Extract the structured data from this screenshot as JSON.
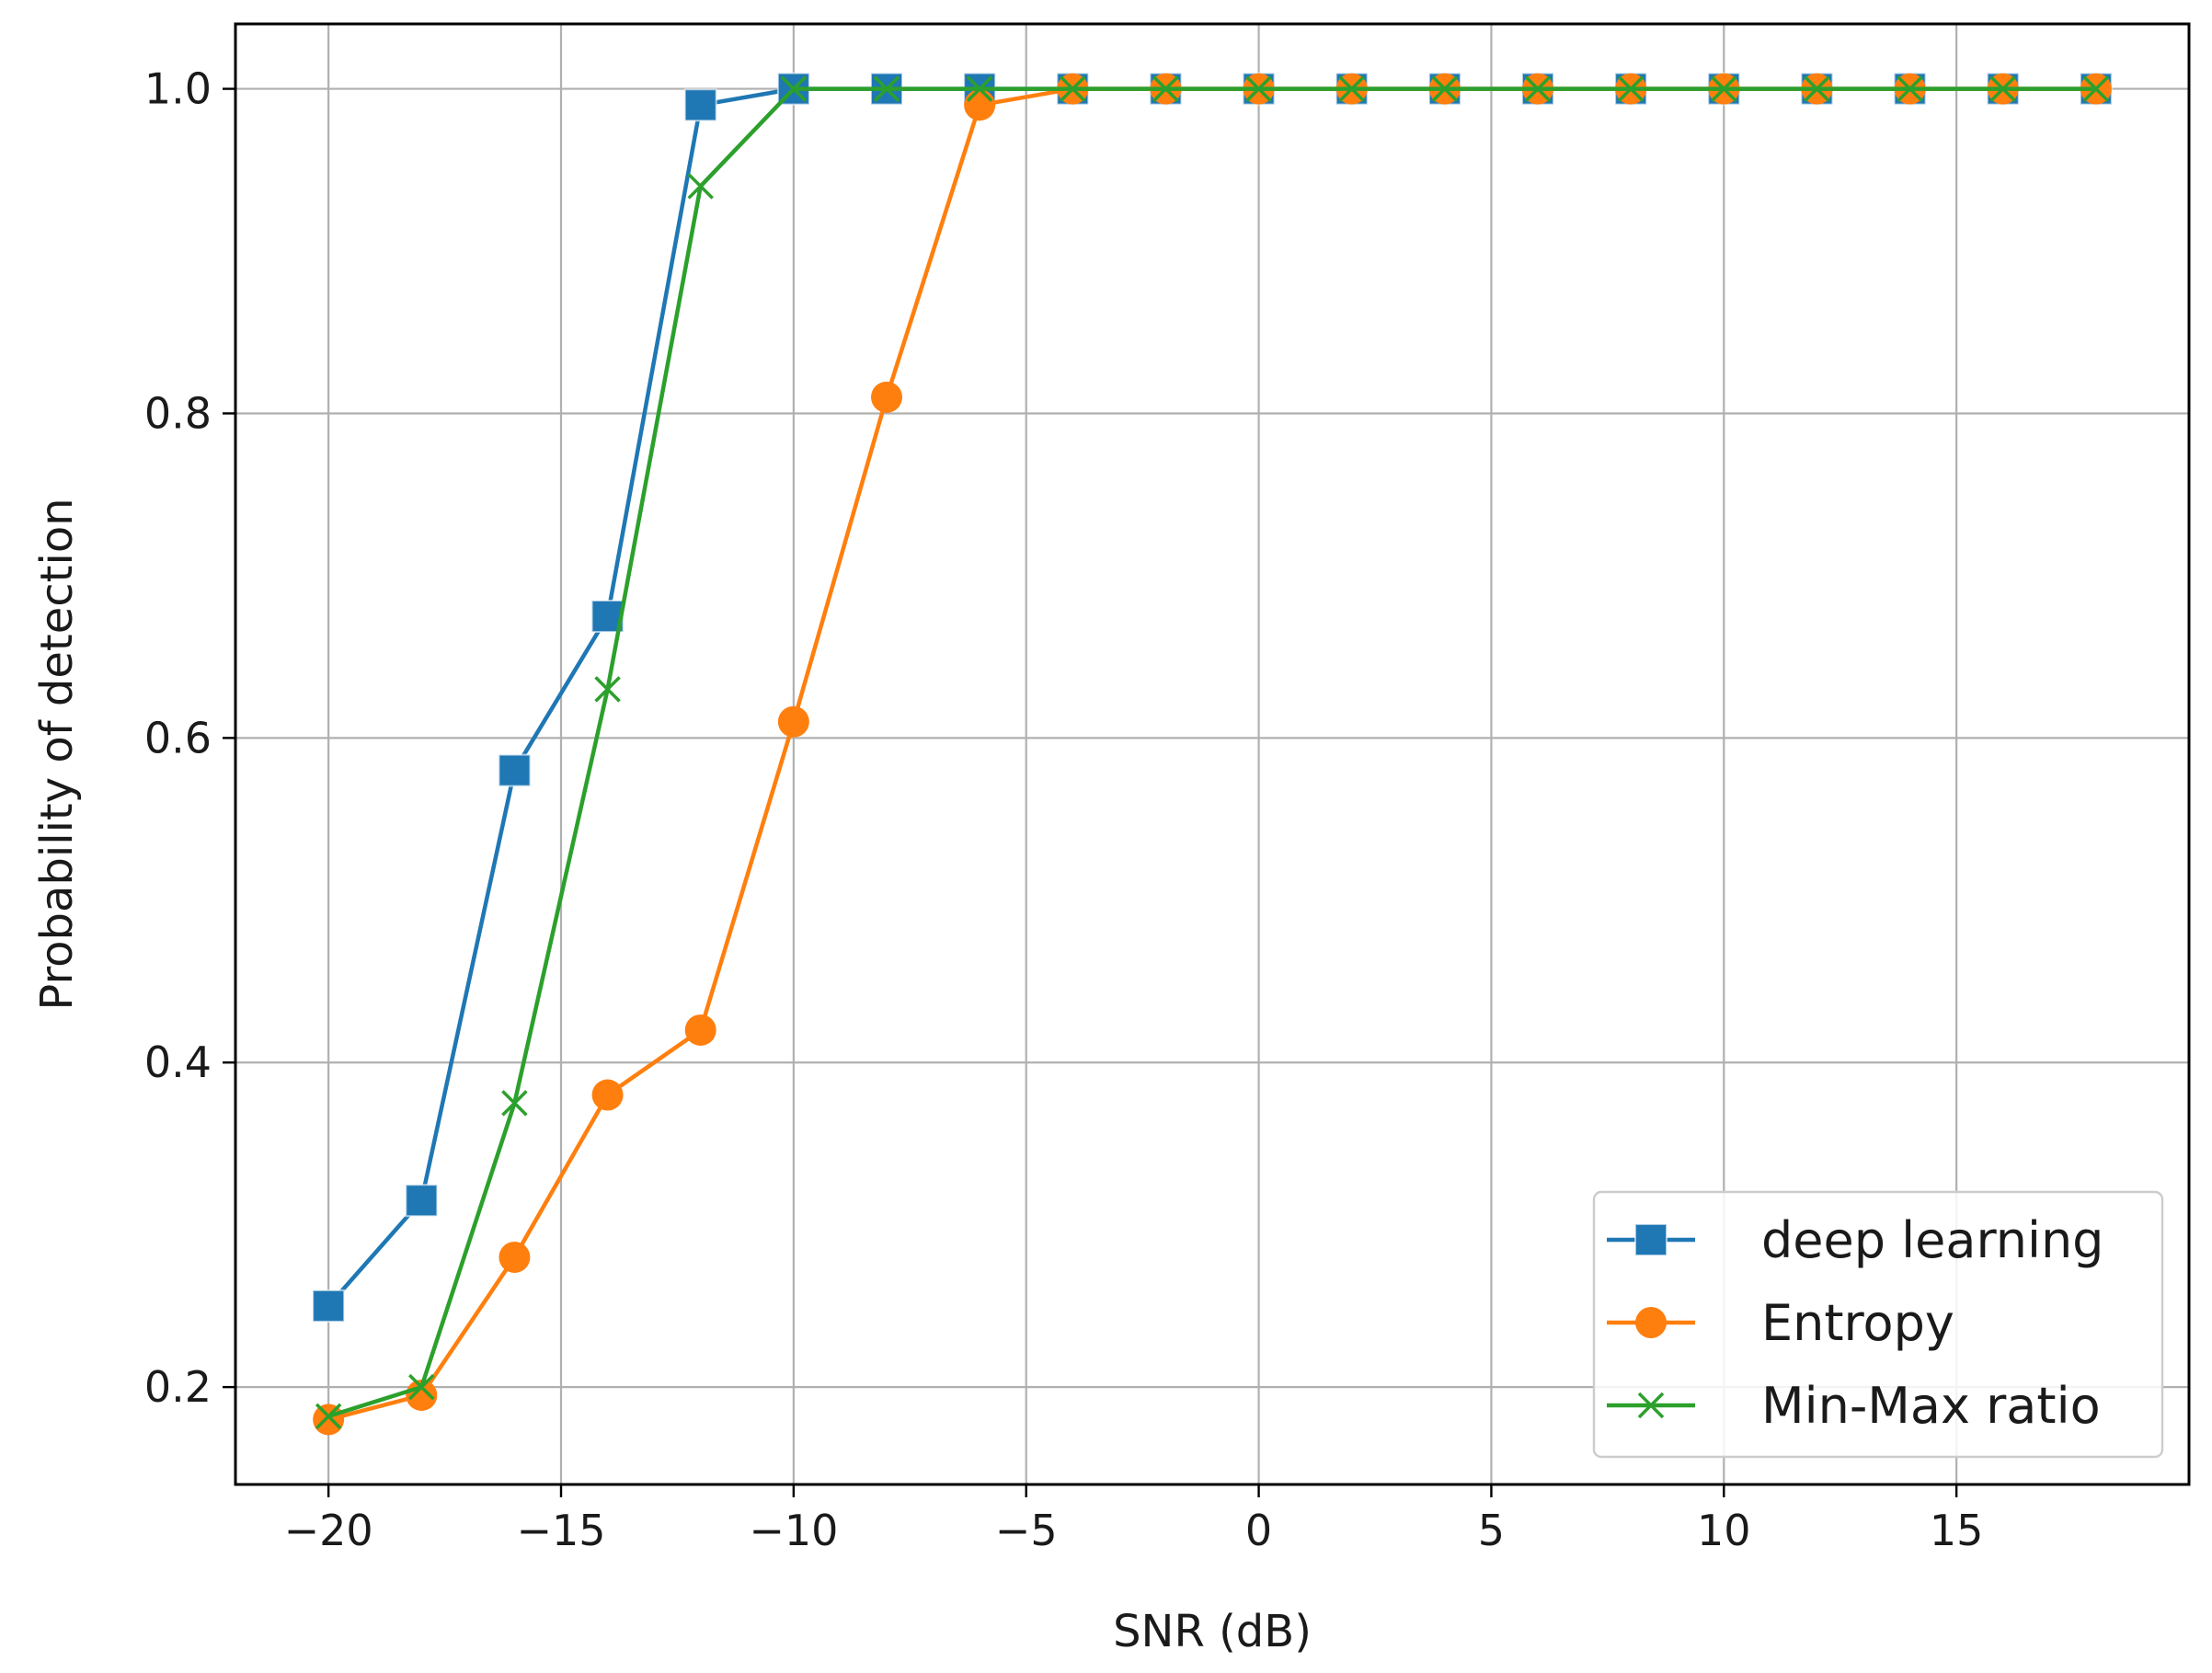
{
  "chart_data": {
    "type": "line",
    "title": "",
    "xlabel": "SNR (dB)",
    "ylabel": "Probability of detection",
    "xlim": [
      -22,
      20
    ],
    "ylim": [
      0.14,
      1.04
    ],
    "xticks": [
      -20,
      -15,
      -10,
      -5,
      0,
      5,
      10,
      15
    ],
    "xtick_labels": [
      "−20",
      "−15",
      "−10",
      "−5",
      "0",
      "5",
      "10",
      "15"
    ],
    "yticks": [
      0.2,
      0.4,
      0.6,
      0.8,
      1.0
    ],
    "ytick_labels": [
      "0.2",
      "0.4",
      "0.6",
      "0.8",
      "1.0"
    ],
    "grid": true,
    "legend_position": "lower-right",
    "x": [
      -20,
      -18,
      -16,
      -14,
      -12,
      -10,
      -8,
      -6,
      -4,
      -2,
      0,
      2,
      4,
      6,
      8,
      10,
      12,
      14,
      16,
      18
    ],
    "series": [
      {
        "name": "deep learning",
        "color": "#1f77b4",
        "marker": "square",
        "values": [
          0.25,
          0.315,
          0.58,
          0.675,
          0.99,
          1.0,
          1.0,
          1.0,
          1.0,
          1.0,
          1.0,
          1.0,
          1.0,
          1.0,
          1.0,
          1.0,
          1.0,
          1.0,
          1.0,
          1.0
        ]
      },
      {
        "name": "Entropy",
        "color": "#ff7f0e",
        "marker": "circle",
        "values": [
          0.18,
          0.195,
          0.28,
          0.38,
          0.42,
          0.61,
          0.81,
          0.99,
          1.0,
          1.0,
          1.0,
          1.0,
          1.0,
          1.0,
          1.0,
          1.0,
          1.0,
          1.0,
          1.0,
          1.0
        ]
      },
      {
        "name": "Min-Max ratio",
        "color": "#2ca02c",
        "marker": "x",
        "values": [
          0.182,
          0.2,
          0.375,
          0.63,
          0.94,
          1.0,
          1.0,
          1.0,
          1.0,
          1.0,
          1.0,
          1.0,
          1.0,
          1.0,
          1.0,
          1.0,
          1.0,
          1.0,
          1.0,
          1.0
        ]
      }
    ]
  }
}
